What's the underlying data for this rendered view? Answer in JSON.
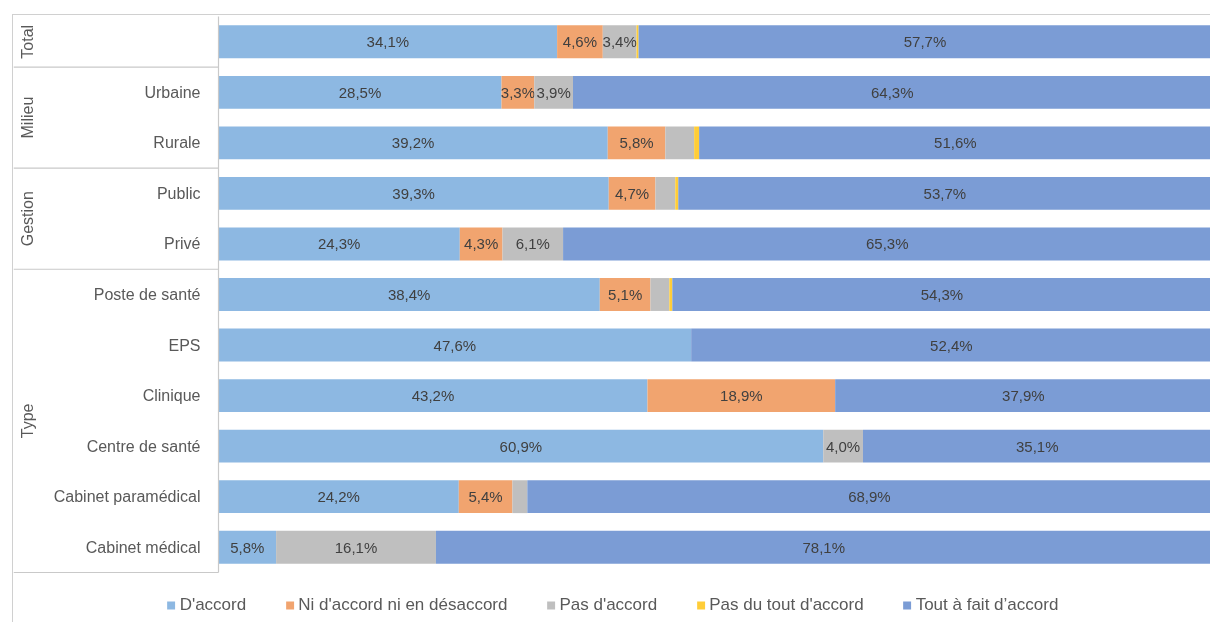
{
  "chart_data": {
    "type": "bar",
    "orientation": "horizontal",
    "stacked": true,
    "categories": [
      null,
      "Urbaine",
      "Rurale",
      "Public",
      "Privé",
      "Poste de santé",
      "EPS",
      "Clinique",
      "Centre de santé",
      "Cabinet paramédical",
      "Cabinet médical"
    ],
    "series": [
      {
        "name": "D'accord",
        "color": "#8db8e2",
        "values": [
          34.1,
          28.5,
          39.2,
          39.3,
          24.3,
          38.4,
          47.6,
          43.2,
          60.9,
          24.2,
          5.8
        ],
        "value_labels": [
          "34,1%",
          "28,5%",
          "39,2%",
          "39,3%",
          "24,3%",
          "38,4%",
          "47,6%",
          "43,2%",
          "60,9%",
          "24,2%",
          "5,8%"
        ]
      },
      {
        "name": "Ni d'accord ni en désaccord",
        "color": "#f1a46f",
        "values": [
          4.6,
          3.3,
          5.8,
          4.7,
          4.3,
          5.1,
          null,
          18.9,
          null,
          5.4,
          null
        ],
        "value_labels": [
          "4,6%",
          "3,3%",
          "5,8%",
          "4,7%",
          "4,3%",
          "5,1%",
          null,
          "18,9%",
          null,
          "5,4%",
          null
        ]
      },
      {
        "name": "Pas d'accord",
        "color": "#bfbfbf",
        "values": [
          3.4,
          3.9,
          2.9,
          2.0,
          6.1,
          1.9,
          null,
          null,
          4.0,
          1.5,
          16.1
        ],
        "value_labels": [
          "3,4%",
          "3,9%",
          null,
          null,
          "6,1%",
          null,
          null,
          null,
          "4,0%",
          null,
          "16,1%"
        ]
      },
      {
        "name": "Pas du tout d'accord",
        "color": "#ffcd38",
        "values": [
          0.2,
          null,
          0.5,
          0.3,
          null,
          0.3,
          null,
          null,
          null,
          null,
          null
        ]
      },
      {
        "name": "Tout à fait d’accord",
        "color": "#7b9cd5",
        "values": [
          57.7,
          64.3,
          51.6,
          53.7,
          65.3,
          54.3,
          52.4,
          37.9,
          35.1,
          68.9,
          78.1
        ],
        "value_labels": [
          "57,7%",
          "64,3%",
          "51,6%",
          "53,7%",
          "65,3%",
          "54,3%",
          "52,4%",
          "37,9%",
          "35,1%",
          "68,9%",
          "78,1%"
        ]
      }
    ],
    "xlim": [
      0,
      100
    ],
    "tick_labels": "y",
    "legend": "bottom",
    "annotations": [
      "Total",
      "Milieu",
      "Gestion",
      "Type"
    ]
  }
}
